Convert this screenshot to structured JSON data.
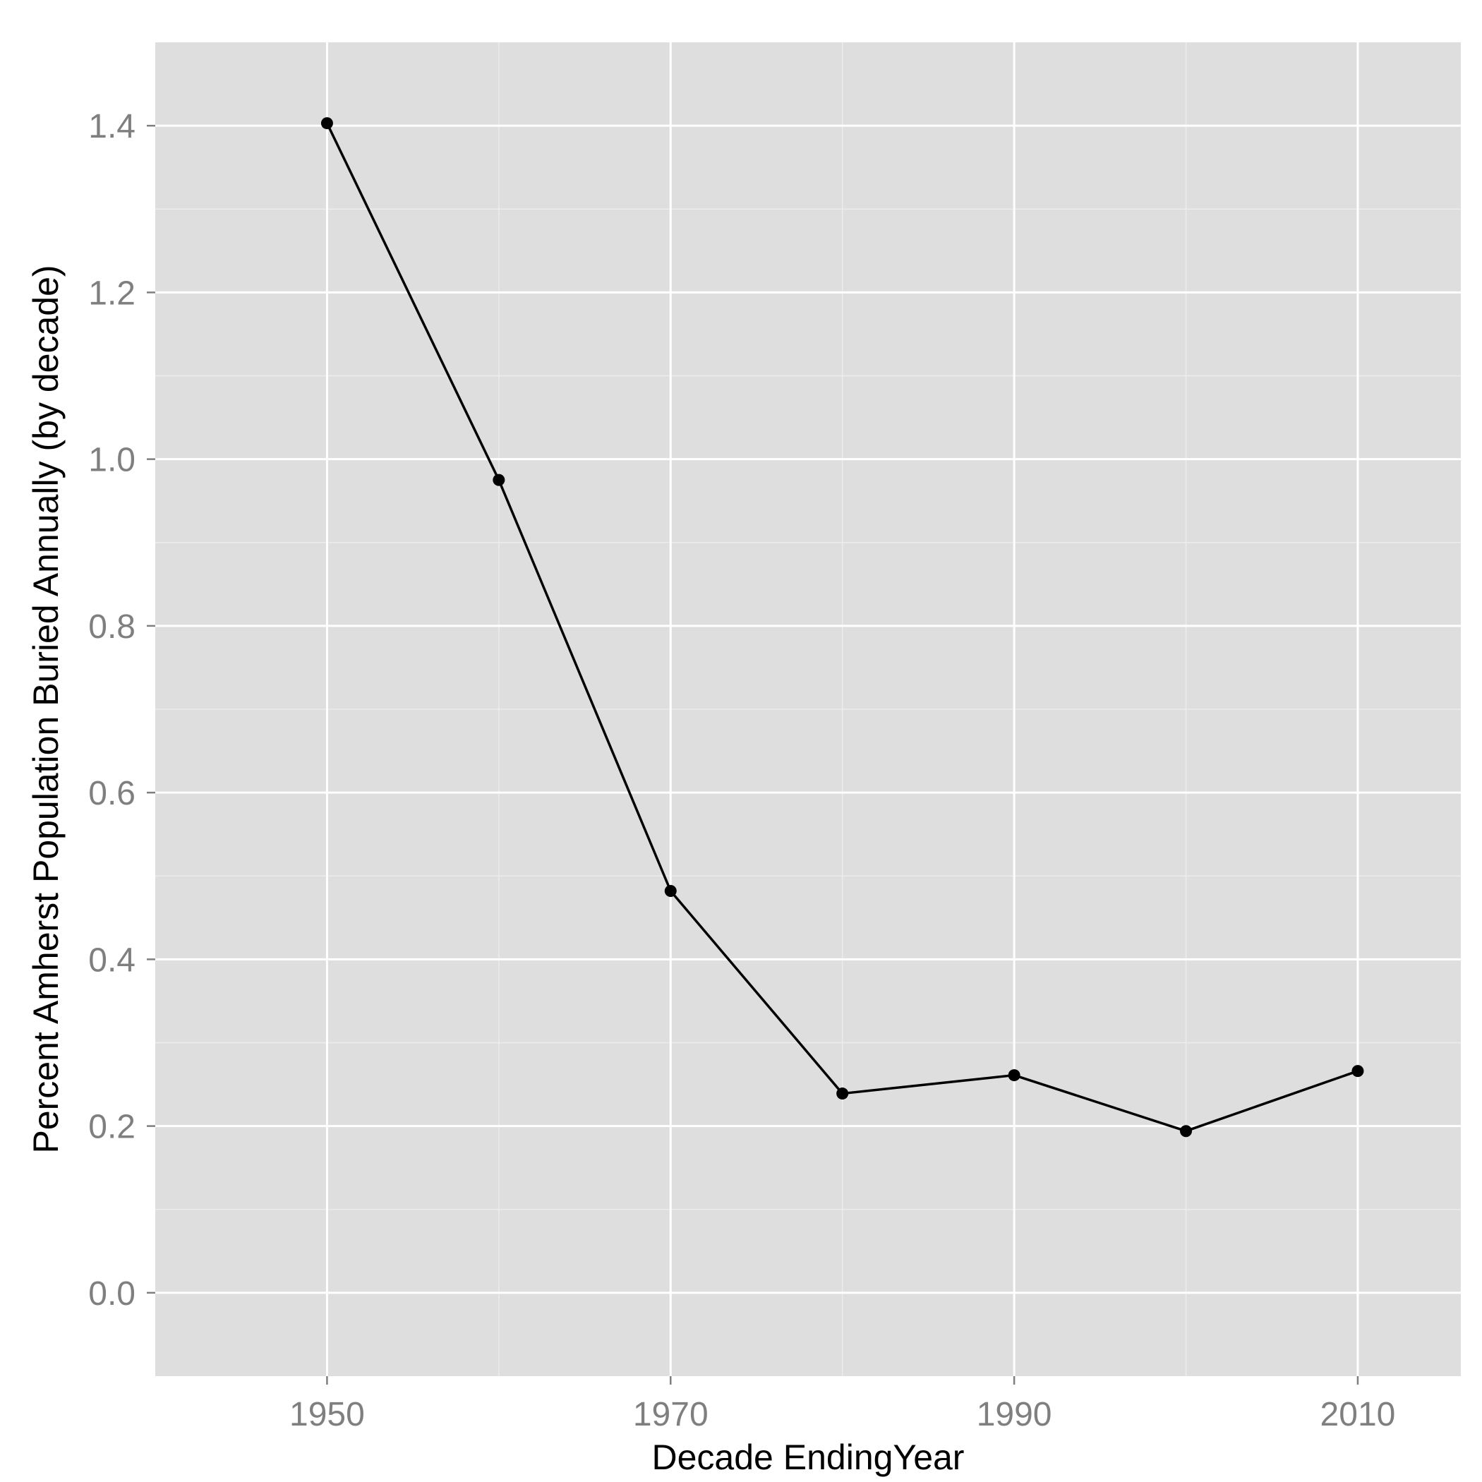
{
  "chart_data": {
    "type": "line",
    "xlabel": "Decade EndingYear",
    "ylabel": "Percent Amherst Population Buried Annually (by decade)",
    "x": [
      1950,
      1960,
      1970,
      1980,
      1990,
      2000,
      2010
    ],
    "series": [
      {
        "values": [
          1.403,
          0.975,
          0.482,
          0.239,
          0.261,
          0.194,
          0.266
        ]
      }
    ],
    "xlim": [
      1940,
      2016
    ],
    "ylim": [
      -0.1,
      1.5
    ],
    "x_ticks": [
      1950,
      1970,
      1990,
      2010
    ],
    "x_minor_ticks": [
      1960,
      1980,
      2000
    ],
    "y_ticks": [
      0.0,
      0.2,
      0.4,
      0.6,
      0.8,
      1.0,
      1.2,
      1.4
    ],
    "y_tick_labels": [
      "0.0",
      "0.2",
      "0.4",
      "0.6",
      "0.8",
      "1.0",
      "1.2",
      "1.4"
    ],
    "grid": true,
    "legend": "none",
    "colors": {
      "panel_background": "#dedede",
      "grid_major": "#ffffff",
      "grid_minor": "#ececec",
      "line": "#000000",
      "tick_label": "#7f7f7f",
      "axis_title": "#000000"
    }
  }
}
